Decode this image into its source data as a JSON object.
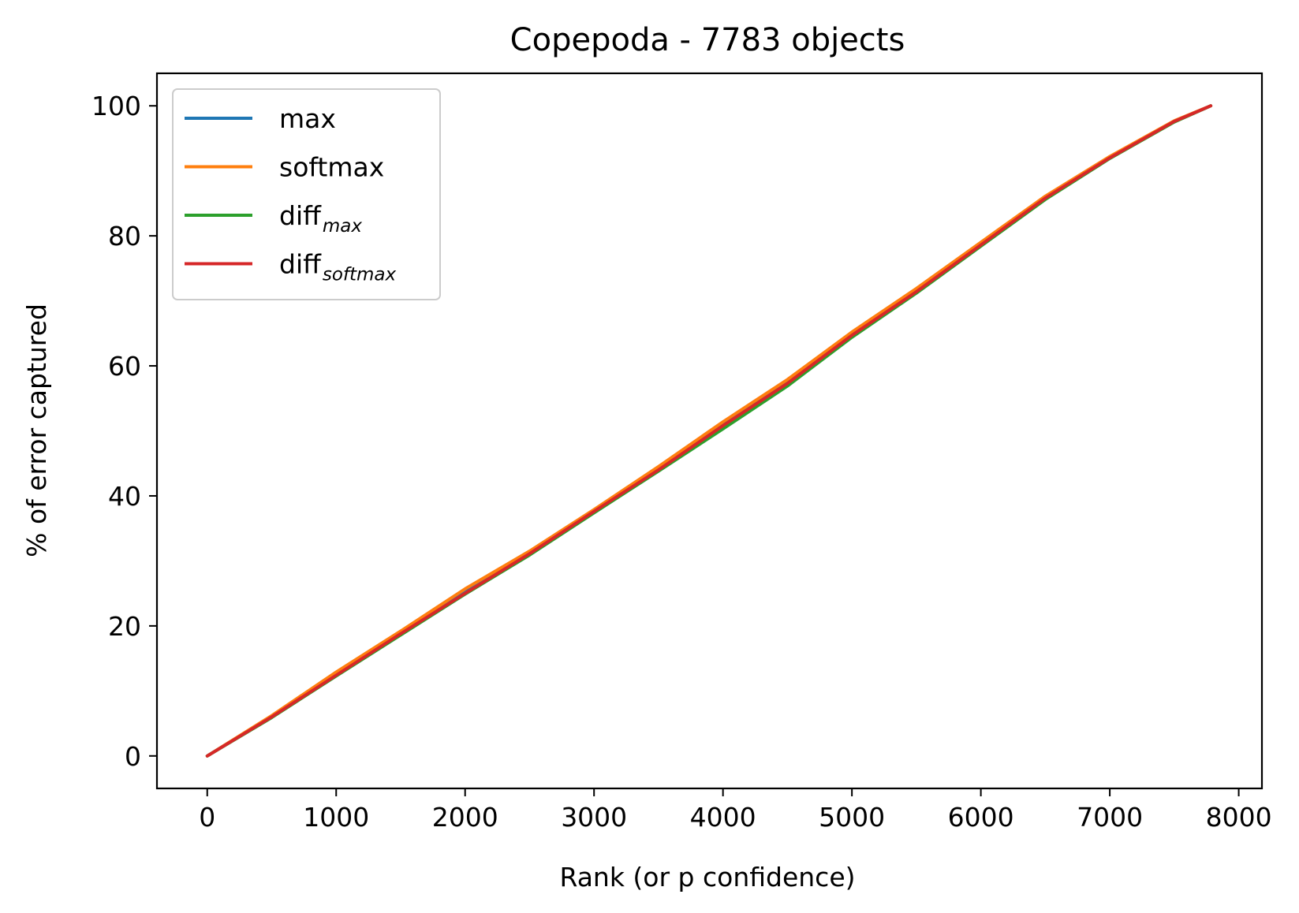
{
  "chart_data": {
    "type": "line",
    "title": "Copepoda - 7783 objects",
    "xlabel": "Rank (or p confidence)",
    "ylabel": "% of error captured",
    "xlim": [
      -390,
      8180
    ],
    "ylim": [
      -5,
      105
    ],
    "xticks": [
      0,
      1000,
      2000,
      3000,
      4000,
      5000,
      6000,
      7000,
      8000
    ],
    "yticks": [
      0,
      20,
      40,
      60,
      80,
      100
    ],
    "grid": false,
    "legend_position": "top-left",
    "series": [
      {
        "name": "max",
        "legend_base": "max",
        "legend_sub": "",
        "color": "#1f77b4",
        "x": [
          0,
          500,
          1000,
          1500,
          2000,
          2500,
          3000,
          3500,
          4000,
          4500,
          5000,
          5500,
          6000,
          6500,
          7000,
          7500,
          7783
        ],
        "y": [
          0,
          6.1,
          12.6,
          18.9,
          25.3,
          31.3,
          37.7,
          44.2,
          51.0,
          57.6,
          64.9,
          71.6,
          78.7,
          85.9,
          92.1,
          97.6,
          100
        ]
      },
      {
        "name": "softmax",
        "legend_base": "softmax",
        "legend_sub": "",
        "color": "#ff7f0e",
        "x": [
          0,
          500,
          1000,
          1500,
          2000,
          2500,
          3000,
          3500,
          4000,
          4500,
          5000,
          5500,
          6000,
          6500,
          7000,
          7500,
          7783
        ],
        "y": [
          0,
          6.2,
          12.9,
          19.2,
          25.7,
          31.5,
          37.9,
          44.5,
          51.4,
          57.9,
          65.2,
          71.9,
          79.0,
          86.1,
          92.2,
          97.7,
          100
        ]
      },
      {
        "name": "diffmax",
        "legend_base": "diff",
        "legend_sub": "max",
        "color": "#2ca02c",
        "x": [
          0,
          500,
          1000,
          1500,
          2000,
          2500,
          3000,
          3500,
          4000,
          4500,
          5000,
          5500,
          6000,
          6500,
          7000,
          7500,
          7783
        ],
        "y": [
          0,
          5.9,
          12.3,
          18.6,
          24.9,
          30.9,
          37.4,
          43.8,
          50.3,
          56.9,
          64.4,
          71.2,
          78.4,
          85.6,
          91.9,
          97.5,
          100
        ]
      },
      {
        "name": "diffsoftmax",
        "legend_base": "diff",
        "legend_sub": "softmax",
        "color": "#d62728",
        "x": [
          0,
          500,
          1000,
          1500,
          2000,
          2500,
          3000,
          3500,
          4000,
          4500,
          5000,
          5500,
          6000,
          6500,
          7000,
          7500,
          7783
        ],
        "y": [
          0,
          6.0,
          12.4,
          18.8,
          25.0,
          31.1,
          37.6,
          44.0,
          50.8,
          57.3,
          64.7,
          71.4,
          78.6,
          85.8,
          92.0,
          97.6,
          100
        ]
      }
    ]
  }
}
